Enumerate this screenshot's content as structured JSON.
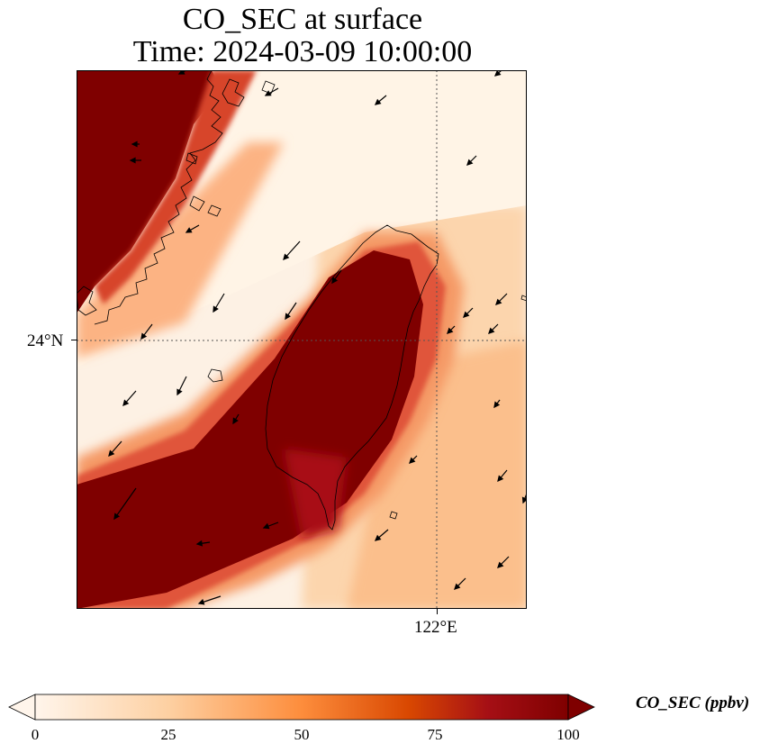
{
  "title": {
    "line1": "CO_SEC at surface",
    "line2": "Time: 2024-03-09 10:00:00"
  },
  "axes": {
    "lat_label": "24°N",
    "lon_label": "122°E"
  },
  "colorbar": {
    "label": "CO_SEC (ppbv)",
    "ticks": [
      "0",
      "25",
      "50",
      "75",
      "100"
    ],
    "colors": [
      "#fff5eb",
      "#fdd0a2",
      "#fd8d3c",
      "#d94801",
      "#a50f15",
      "#7f0000"
    ]
  },
  "field": {
    "variable": "CO_SEC",
    "units": "ppbv",
    "range": [
      0,
      100
    ]
  }
}
